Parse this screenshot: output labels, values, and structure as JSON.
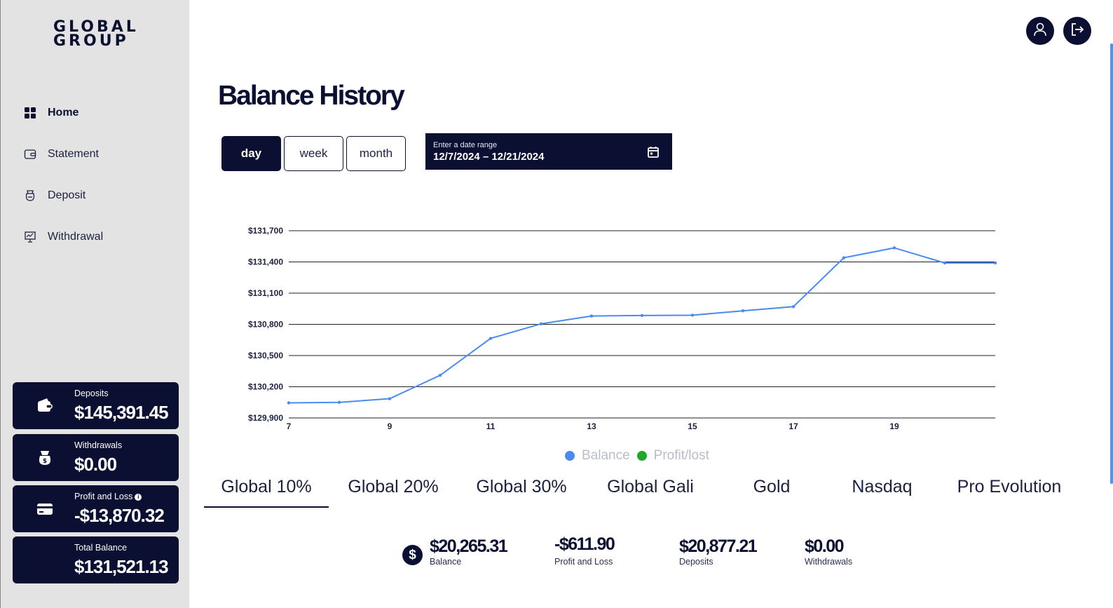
{
  "brand": {
    "line1": "GLOBAL",
    "line2": "GROUP"
  },
  "nav": [
    {
      "label": "Home",
      "icon": "grid-icon",
      "active": true
    },
    {
      "label": "Statement",
      "icon": "wallet-icon",
      "active": false
    },
    {
      "label": "Deposit",
      "icon": "money-bag-icon",
      "active": false
    },
    {
      "label": "Withdrawal",
      "icon": "presentation-chart-icon",
      "active": false
    }
  ],
  "cards": {
    "deposits": {
      "label": "Deposits",
      "value": "$145,391.45"
    },
    "withdrawals": {
      "label": "Withdrawals",
      "value": "$0.00"
    },
    "profit_loss": {
      "label": "Profit and Loss",
      "value": "-$13,870.32"
    },
    "total_balance": {
      "label": "Total Balance",
      "value": "$131,521.13"
    }
  },
  "page": {
    "title": "Balance History"
  },
  "range_buttons": [
    {
      "label": "day",
      "active": true
    },
    {
      "label": "week",
      "active": false
    },
    {
      "label": "month",
      "active": false
    }
  ],
  "date_range": {
    "label": "Enter a date range",
    "value": "12/7/2024 – 12/21/2024"
  },
  "chart_data": {
    "type": "line",
    "x": [
      7,
      8,
      9,
      10,
      11,
      12,
      13,
      14,
      15,
      16,
      17,
      18,
      19,
      20,
      21
    ],
    "xticks": [
      "7",
      "9",
      "11",
      "13",
      "15",
      "17",
      "19"
    ],
    "yticks": [
      "$131,700",
      "$131,400",
      "$131,100",
      "$130,800",
      "$130,500",
      "$130,200",
      "$129,900"
    ],
    "ylim": [
      129900,
      131700
    ],
    "xlim": [
      7,
      21
    ],
    "grid": true,
    "series": [
      {
        "name": "Balance",
        "color": "#4a8af4",
        "values": [
          130045,
          130050,
          130085,
          130310,
          130665,
          130805,
          130880,
          130885,
          130888,
          130930,
          130970,
          131440,
          131535,
          131390,
          131390
        ]
      }
    ],
    "legend": [
      {
        "label": "Balance",
        "color": "#4a8af4"
      },
      {
        "label": "Profit/lost",
        "color": "#1ea82c"
      }
    ]
  },
  "tabs": [
    {
      "label": "Global 10%",
      "active": true
    },
    {
      "label": "Global 20%",
      "active": false
    },
    {
      "label": "Global 30%",
      "active": false
    },
    {
      "label": "Global Gali",
      "active": false
    },
    {
      "label": "Gold",
      "active": false
    },
    {
      "label": "Nasdaq",
      "active": false
    },
    {
      "label": "Pro Evolution",
      "active": false
    }
  ],
  "summary": {
    "currency_symbol": "$",
    "balance": {
      "value": "$20,265.31",
      "label": "Balance"
    },
    "profit_loss": {
      "value": "-$611.90",
      "label": "Profit and Loss"
    },
    "deposits": {
      "value": "$20,877.21",
      "label": "Deposits"
    },
    "withdrawals": {
      "value": "$0.00",
      "label": "Withdrawals"
    }
  },
  "colors": {
    "navy": "#0b1033",
    "sidebar_bg": "#e3e3e3",
    "line": "#4a8af4",
    "profit": "#1ea82c"
  }
}
